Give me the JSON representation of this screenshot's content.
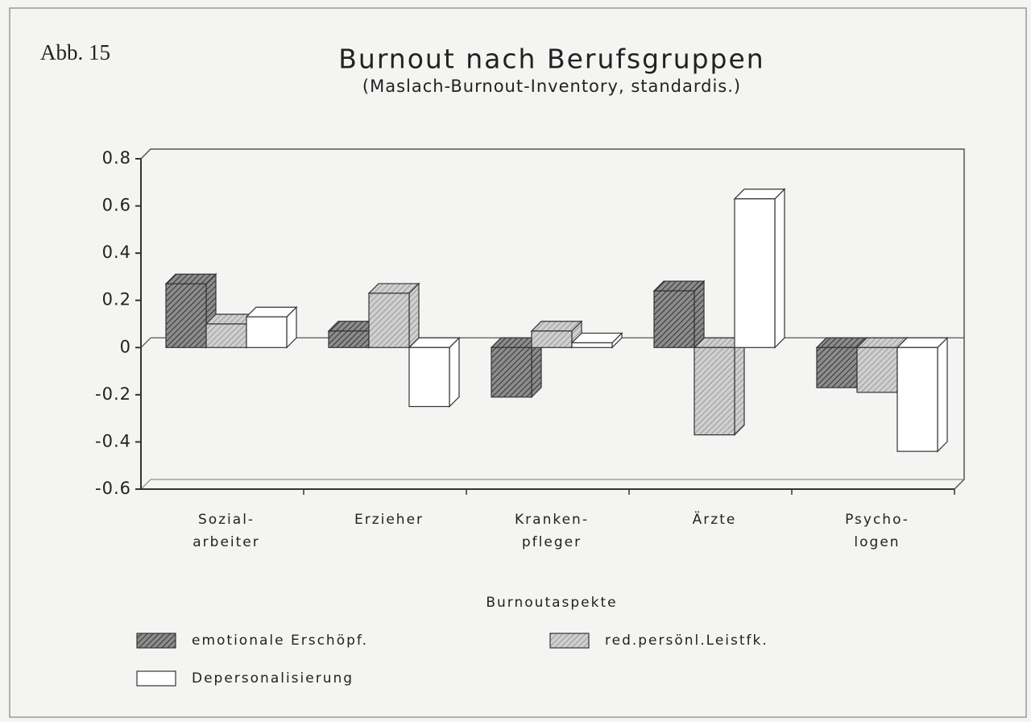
{
  "chart_data": {
    "type": "bar3d",
    "figure_label": "Abb. 15",
    "title": "Burnout nach Berufsgruppen",
    "subtitle": "(Maslach-Burnout-Inventory, standardis.)",
    "categories": [
      [
        "Sozial-",
        "arbeiter"
      ],
      [
        "Erzieher"
      ],
      [
        "Kranken-",
        "pfleger"
      ],
      [
        "Ärzte"
      ],
      [
        "Psycho-",
        "logen"
      ]
    ],
    "legend_title": "Burnoutaspekte",
    "series": [
      {
        "name": "emotionale Erschöpf.",
        "color": "#8c8c8c",
        "values": [
          0.27,
          0.07,
          -0.21,
          0.24,
          -0.17
        ]
      },
      {
        "name": "red.persönl.Leistfk.",
        "color": "#cfcfcf",
        "values": [
          0.1,
          0.23,
          0.07,
          -0.37,
          -0.19
        ]
      },
      {
        "name": "Depersonalisierung",
        "color": "#ffffff",
        "values": [
          0.13,
          -0.25,
          0.02,
          0.63,
          -0.44
        ]
      }
    ],
    "ylim": [
      -0.6,
      0.8
    ],
    "yticks": [
      -0.6,
      -0.4,
      -0.2,
      0,
      0.2,
      0.4,
      0.6,
      0.8
    ]
  }
}
